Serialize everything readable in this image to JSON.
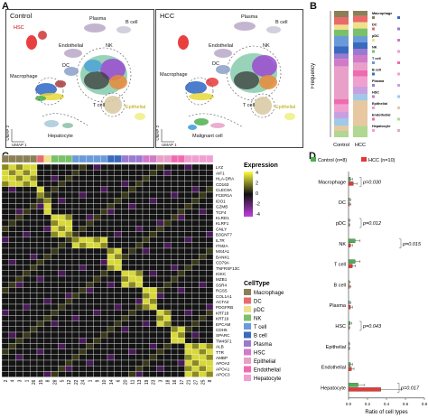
{
  "panels": {
    "A": "A",
    "B": "B",
    "C": "C",
    "D": "D"
  },
  "panelA": {
    "titles": [
      "Control",
      "HCC"
    ],
    "umap1": "UMAP 1",
    "umap2": "UMAP 2",
    "control_labels": {
      "plasma": "Plasma",
      "bcell": "B cell",
      "hsc": "HSC",
      "endothelial": "Endothelial",
      "nk": "NK",
      "macrophage": "Macrophage",
      "dc": "DC",
      "tcell": "T cell",
      "epithelial": "Epithelial",
      "hepatocyte": "Hepatocyte"
    },
    "hcc_labels": {
      "plasma": "Plasma",
      "bcell": "B cell",
      "endothelial": "Endothelial",
      "nk": "NK",
      "macrophage": "Macrophage",
      "dc": "DC",
      "tcell": "T cell",
      "epithelial": "Epithelial",
      "malignant": "Malignant cell"
    }
  },
  "panelB": {
    "ylabel": "Frequency",
    "groups": [
      "Control",
      "HCC"
    ],
    "legend_groups": [
      "Macrophage",
      "DC",
      "pDC",
      "NK",
      "T cell",
      "B cell",
      "Plasma",
      "HSC",
      "Epithelial",
      "Endothelial",
      "Hepatocyte"
    ]
  },
  "panelC": {
    "genes": [
      "LYZ",
      "AIF1",
      "HLA-DRA",
      "CD163",
      "CLEC9A",
      "FCER1A",
      "IDO1",
      "GZMB",
      "TCF4",
      "KLRD1",
      "KLRF1",
      "GNLY",
      "B3GNT7",
      "IL7R",
      "ITM2A",
      "MS4A1",
      "BANK1",
      "CD79A",
      "TNFRSF13C",
      "IGKC",
      "MZB1",
      "SSR4",
      "RGS5",
      "COL1A1",
      "ACTA2",
      "PDGFRB",
      "KRT18",
      "KRT19",
      "EPCAM",
      "CDH5",
      "SPARC",
      "TM4SF1",
      "ALB",
      "TTR",
      "AMBP",
      "APOA2",
      "APOA1",
      "APOC3"
    ],
    "expression_title": "Expression",
    "expression_ticks": [
      "4",
      "2",
      "0",
      "-2",
      "-4"
    ],
    "celltype_title": "CellType",
    "celltypes": [
      {
        "name": "Macrophage",
        "color": "#8a7f56"
      },
      {
        "name": "DC",
        "color": "#e86a6a"
      },
      {
        "name": "pDC",
        "color": "#f0e08a"
      },
      {
        "name": "NK",
        "color": "#7ac06a"
      },
      {
        "name": "T cell",
        "color": "#6a9ad8"
      },
      {
        "name": "B cell",
        "color": "#3a6abe"
      },
      {
        "name": "Plasma",
        "color": "#9a7ad0"
      },
      {
        "name": "HSC",
        "color": "#d07ac8"
      },
      {
        "name": "Epithelial",
        "color": "#e8a0c8"
      },
      {
        "name": "Endothelial",
        "color": "#f06ab0"
      },
      {
        "name": "Hepatocyte",
        "color": "#f0a0d0"
      }
    ],
    "clusters": [
      "2",
      "4",
      "3",
      "1",
      "26",
      "15",
      "8",
      "28",
      "5",
      "12",
      "22",
      "24",
      "1",
      "9",
      "10",
      "14",
      "6",
      "20",
      "11",
      "13",
      "19",
      "23",
      "3",
      "18",
      "16",
      "17",
      "21",
      "27",
      "25",
      "8"
    ]
  },
  "chart_data": {
    "type": "bar",
    "categories": [
      "Macrophage",
      "DC",
      "pDC",
      "NK",
      "T cell",
      "B cell",
      "Plasma",
      "HSC",
      "Epithelial",
      "Endothelial",
      "Hepatocyte"
    ],
    "series": [
      {
        "name": "Control (n=8)",
        "color": "#4caf50",
        "values": [
          0.02,
          0.01,
          0.005,
          0.07,
          0.07,
          0.005,
          0.01,
          0.015,
          0.001,
          0.02,
          0.1
        ]
      },
      {
        "name": "HCC (n=10)",
        "color": "#e53935",
        "values": [
          0.05,
          0.01,
          0.003,
          0.02,
          0.04,
          0.01,
          0.02,
          0.003,
          0.001,
          0.03,
          0.34
        ]
      }
    ],
    "pvalues": [
      {
        "category": "Macrophage",
        "text": "p=0.030"
      },
      {
        "category": "pDC",
        "text": "p=0.012"
      },
      {
        "category": "NK",
        "text": "p=0.015"
      },
      {
        "category": "HSC",
        "text": "p=0.043"
      },
      {
        "category": "Hepatocyte",
        "text": "p=0.017"
      }
    ],
    "xlabel": "Ratio of cell types",
    "xticks": [
      "0.0",
      "0.2",
      "0.4",
      "0.6",
      "0.8"
    ],
    "xlim": [
      0,
      0.8
    ]
  }
}
